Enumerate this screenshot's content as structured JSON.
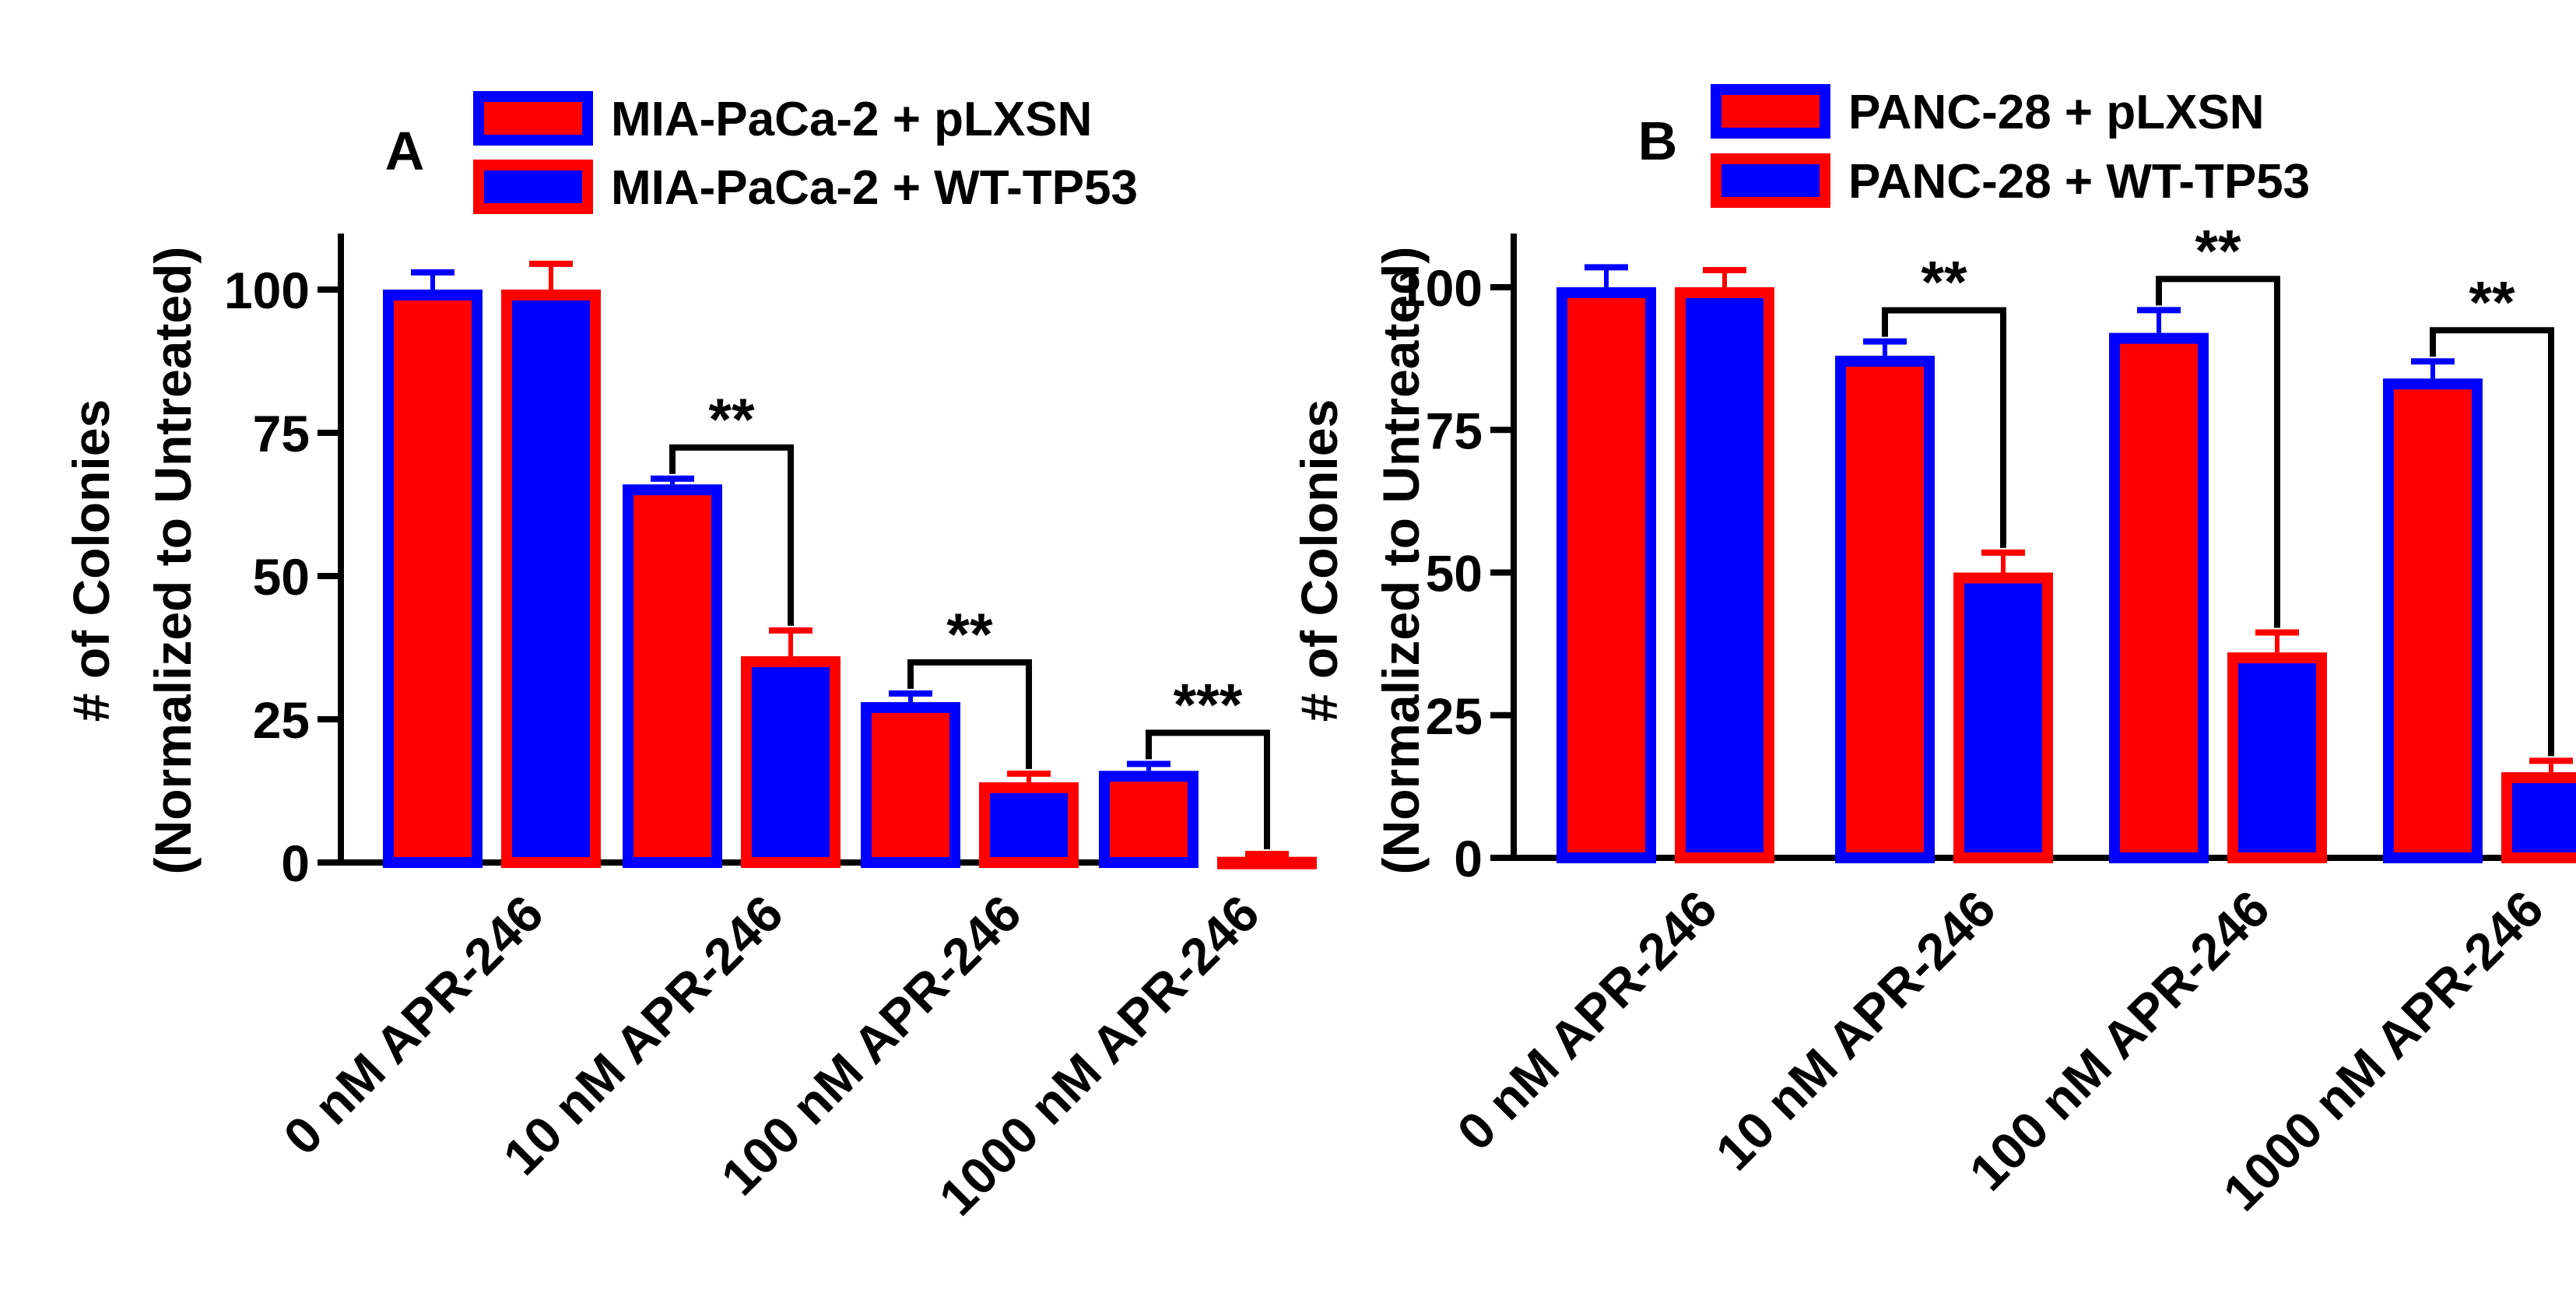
{
  "chart_data": [
    {
      "type": "bar",
      "panel_label": "A",
      "ylabel_line1": "# of Colonies",
      "ylabel_line2": "(Normalized to Untreated)",
      "categories": [
        "0 nM APR-246",
        "10 nM APR-246",
        "100 nM APR-246",
        "1000 nM APR-246"
      ],
      "ylim": [
        0,
        110
      ],
      "yticks": [
        0,
        25,
        50,
        75,
        100
      ],
      "series": [
        {
          "name": "MIA-PaCa-2 + pLXSN",
          "fill": "#ff0000",
          "edge": "#0000ff",
          "values": [
            100,
            66,
            28,
            16
          ],
          "errors": [
            3,
            1,
            1.5,
            1.2
          ]
        },
        {
          "name": "MIA-PaCa-2 + WT-TP53",
          "fill": "#0000ff",
          "edge": "#ff0000",
          "values": [
            100,
            36,
            14,
            1
          ],
          "errors": [
            4.5,
            4.5,
            1.5,
            0.5
          ]
        }
      ],
      "significance": [
        {
          "category": 1,
          "label": "**"
        },
        {
          "category": 2,
          "label": "**"
        },
        {
          "category": 3,
          "label": "***"
        }
      ]
    },
    {
      "type": "bar",
      "panel_label": "B",
      "ylabel_line1": "# of Colonies",
      "ylabel_line2": "(Normalized to Untreated)",
      "categories": [
        "0 nM APR-246",
        "10 nM APR-246",
        "100 nM APR-246",
        "1000 nM APR-246"
      ],
      "ylim": [
        0,
        110
      ],
      "yticks": [
        0,
        25,
        50,
        75,
        100
      ],
      "series": [
        {
          "name": "PANC-28 + pLXSN",
          "fill": "#ff0000",
          "edge": "#0000ff",
          "values": [
            100,
            88,
            92,
            84
          ],
          "errors": [
            3.5,
            2.5,
            4,
            3
          ]
        },
        {
          "name": "PANC-28 + WT-TP53",
          "fill": "#0000ff",
          "edge": "#ff0000",
          "values": [
            100,
            50,
            36,
            15
          ],
          "errors": [
            3,
            3.5,
            3.5,
            2
          ]
        }
      ],
      "significance": [
        {
          "category": 1,
          "label": "**"
        },
        {
          "category": 2,
          "label": "**"
        },
        {
          "category": 3,
          "label": "**"
        }
      ]
    }
  ]
}
